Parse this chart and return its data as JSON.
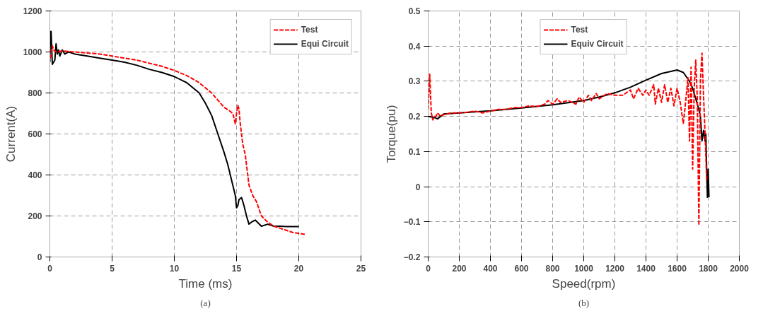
{
  "chart_data": [
    {
      "type": "line",
      "xlabel": "Time (ms)",
      "ylabel": "Current(A)",
      "annotations": [
        "(a)"
      ],
      "xlim": [
        0,
        25
      ],
      "xticks": [
        0,
        5,
        10,
        15,
        20,
        25
      ],
      "ylim": [
        0,
        1200
      ],
      "yticks": [
        0,
        200,
        400,
        600,
        800,
        1000,
        1200
      ],
      "grid": true,
      "legend": "top right",
      "series": [
        {
          "name": "Test",
          "color": "#ff0000",
          "line_style": "dashed",
          "x": [
            0,
            0.1,
            0.2,
            0.3,
            0.5,
            1,
            2,
            3,
            4,
            5,
            6,
            7,
            8,
            9,
            10,
            11,
            12,
            12.5,
            13,
            13.5,
            14,
            14.5,
            14.7,
            14.9,
            15.0,
            15.1,
            15.2,
            15.3,
            15.5,
            15.7,
            16,
            16.3,
            16.6,
            17,
            17.5,
            18,
            18.5,
            19,
            19.5,
            20,
            20.5
          ],
          "values": [
            970,
            980,
            1030,
            1010,
            1000,
            1005,
            1000,
            995,
            990,
            980,
            970,
            960,
            945,
            930,
            910,
            885,
            850,
            825,
            800,
            765,
            730,
            710,
            700,
            650,
            700,
            740,
            720,
            650,
            550,
            500,
            350,
            300,
            270,
            200,
            170,
            150,
            140,
            130,
            120,
            115,
            110
          ]
        },
        {
          "name": "Equi Circuit",
          "color": "#000000",
          "line_style": "solid",
          "x": [
            0,
            0.05,
            0.1,
            0.2,
            0.3,
            0.4,
            0.5,
            0.6,
            0.7,
            0.8,
            1,
            1.2,
            1.5,
            2,
            3,
            4,
            5,
            6,
            7,
            8,
            9,
            10,
            11,
            12,
            12.5,
            13,
            13.5,
            14,
            14.3,
            14.5,
            14.7,
            14.9,
            15.0,
            15.1,
            15.2,
            15.4,
            15.6,
            15.8,
            16,
            16.2,
            16.5,
            17,
            17.5,
            18,
            18.5,
            19,
            20
          ],
          "values": [
            950,
            1100,
            1100,
            940,
            950,
            960,
            1040,
            990,
            1010,
            980,
            1010,
            990,
            1000,
            990,
            980,
            970,
            960,
            950,
            935,
            915,
            900,
            880,
            850,
            800,
            750,
            690,
            600,
            510,
            450,
            400,
            350,
            300,
            240,
            250,
            280,
            290,
            250,
            200,
            160,
            170,
            180,
            150,
            160,
            150,
            150,
            148,
            148
          ]
        }
      ]
    },
    {
      "type": "line",
      "xlabel": "Speed(rpm)",
      "ylabel": "Torque(pu)",
      "annotations": [
        "(b)"
      ],
      "xlim": [
        0,
        2000
      ],
      "xticks": [
        0,
        200,
        400,
        600,
        800,
        1000,
        1200,
        1400,
        1600,
        1800,
        2000
      ],
      "ylim": [
        -0.2,
        0.5
      ],
      "yticks": [
        -0.2,
        -0.1,
        0,
        0.1,
        0.2,
        0.3,
        0.4,
        0.5
      ],
      "grid": true,
      "legend": "top center",
      "series": [
        {
          "name": "Test",
          "color": "#ff0000",
          "line_style": "dashed",
          "x": [
            0,
            10,
            20,
            30,
            40,
            50,
            60,
            80,
            100,
            150,
            200,
            250,
            300,
            350,
            400,
            450,
            500,
            550,
            600,
            650,
            700,
            750,
            770,
            800,
            830,
            850,
            900,
            950,
            970,
            1000,
            1030,
            1050,
            1080,
            1100,
            1150,
            1200,
            1250,
            1300,
            1320,
            1350,
            1380,
            1400,
            1420,
            1450,
            1460,
            1480,
            1500,
            1520,
            1540,
            1560,
            1580,
            1600,
            1620,
            1640,
            1650,
            1670,
            1680,
            1690,
            1700,
            1710,
            1720,
            1730,
            1740,
            1750,
            1760,
            1770,
            1780,
            1790
          ],
          "values": [
            0.22,
            0.32,
            0.21,
            0.19,
            0.2,
            0.2,
            0.21,
            0.2,
            0.205,
            0.21,
            0.21,
            0.212,
            0.215,
            0.21,
            0.215,
            0.22,
            0.22,
            0.225,
            0.225,
            0.23,
            0.228,
            0.235,
            0.245,
            0.235,
            0.25,
            0.24,
            0.245,
            0.235,
            0.255,
            0.24,
            0.26,
            0.245,
            0.265,
            0.25,
            0.265,
            0.26,
            0.26,
            0.275,
            0.25,
            0.28,
            0.26,
            0.275,
            0.26,
            0.29,
            0.235,
            0.28,
            0.24,
            0.29,
            0.24,
            0.28,
            0.23,
            0.28,
            0.24,
            0.18,
            0.22,
            0.31,
            0.13,
            0.34,
            0.05,
            0.28,
            0.36,
            0.25,
            -0.11,
            0.3,
            0.38,
            0.26,
            0.15,
            0.02
          ]
        },
        {
          "name": "Equiv Circuit",
          "color": "#000000",
          "line_style": "solid",
          "x": [
            0,
            30,
            50,
            60,
            80,
            100,
            200,
            400,
            600,
            800,
            1000,
            1100,
            1200,
            1300,
            1400,
            1500,
            1600,
            1640,
            1680,
            1700,
            1720,
            1740,
            1750,
            1760,
            1770,
            1780,
            1785,
            1790,
            1795,
            1800,
            1805
          ],
          "values": [
            0.2,
            0.198,
            0.195,
            0.193,
            0.2,
            0.207,
            0.21,
            0.216,
            0.224,
            0.233,
            0.245,
            0.255,
            0.267,
            0.283,
            0.303,
            0.322,
            0.332,
            0.325,
            0.3,
            0.28,
            0.25,
            0.22,
            0.2,
            0.13,
            0.16,
            0.13,
            0.15,
            0.05,
            -0.03,
            0.05,
            -0.03
          ]
        }
      ]
    }
  ]
}
